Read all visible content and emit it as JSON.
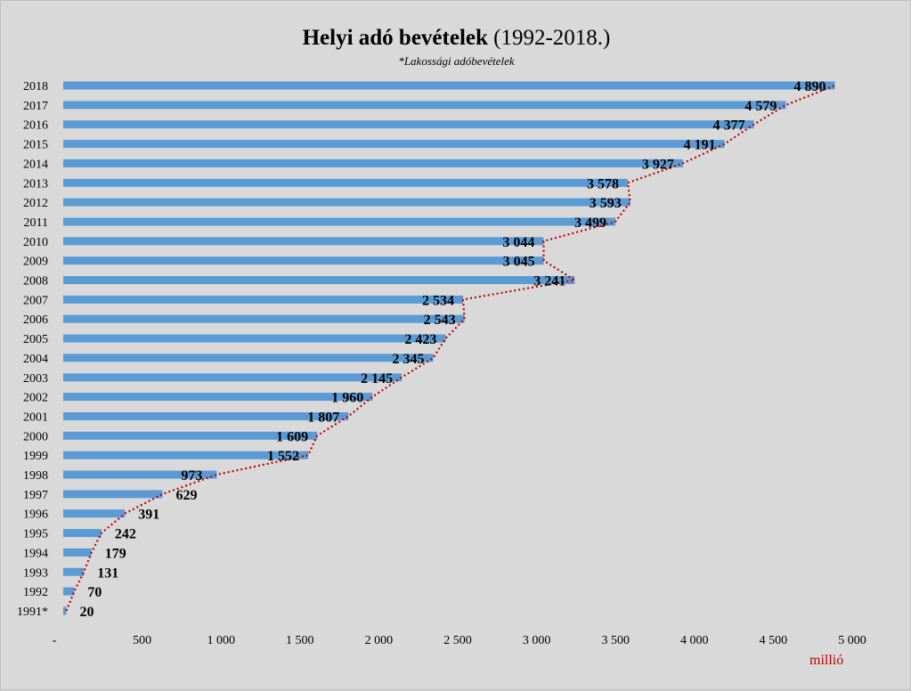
{
  "chart_data": {
    "type": "bar",
    "orientation": "horizontal",
    "title": "Helyi adó bevételek",
    "title_suffix": "(1992-2018.)",
    "subtitle": "*Lakossági adóbevételek",
    "unit_label": "millió",
    "categories": [
      "1991*",
      "1992",
      "1993",
      "1994",
      "1995",
      "1996",
      "1997",
      "1998",
      "1999",
      "2000",
      "2001",
      "2002",
      "2003",
      "2004",
      "2005",
      "2006",
      "2007",
      "2008",
      "2009",
      "2010",
      "2011",
      "2012",
      "2013",
      "2014",
      "2015",
      "2016",
      "2017",
      "2018"
    ],
    "values": [
      20,
      70,
      131,
      179,
      242,
      391,
      629,
      973,
      1552,
      1609,
      1807,
      1960,
      2145,
      2345,
      2423,
      2543,
      2534,
      3241,
      3045,
      3044,
      3499,
      3593,
      3578,
      3927,
      4191,
      4377,
      4579,
      4890
    ],
    "data_labels": [
      "20",
      "70",
      "131",
      "179",
      "242",
      "391",
      "629",
      "973",
      "1 552",
      "1 609",
      "1 807",
      "1 960",
      "2 145",
      "2 345",
      "2 423",
      "2 543",
      "2 534",
      "3 241",
      "3 045",
      "3 044",
      "3 499",
      "3 593",
      "3 578",
      "3 927",
      "4 191",
      "4 377",
      "4 579",
      "4 890"
    ],
    "xlim": [
      0,
      5000
    ],
    "x_ticks": [
      0,
      500,
      1000,
      1500,
      2000,
      2500,
      3000,
      3500,
      4000,
      4500,
      5000
    ],
    "x_tick_labels": [
      "-",
      "500",
      "1 000",
      "1 500",
      "2 000",
      "2 500",
      "3 000",
      "3 500",
      "4 000",
      "4 500",
      "5 000"
    ],
    "grid": false,
    "legend": "none",
    "bar_color": "#5b9bd5",
    "trendline_color": "#c00000",
    "trendline": "dotted"
  }
}
